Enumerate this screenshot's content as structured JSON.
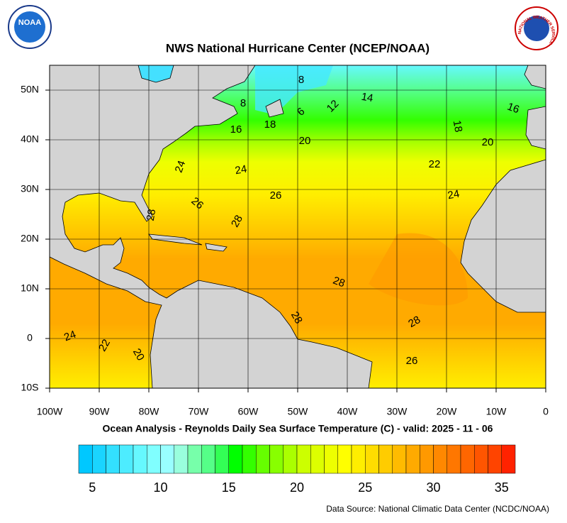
{
  "header": {
    "title": "NWS National Hurricane Center (NCEP/NOAA)",
    "logo_left": "NOAA",
    "logo_right": "NATIONAL WEATHER SERVICE"
  },
  "map": {
    "xlim": [
      -100,
      0
    ],
    "ylim": [
      -10,
      55
    ],
    "xticks": [
      {
        "value": -100,
        "label": "100W"
      },
      {
        "value": -90,
        "label": "90W"
      },
      {
        "value": -80,
        "label": "80W"
      },
      {
        "value": -70,
        "label": "70W"
      },
      {
        "value": -60,
        "label": "60W"
      },
      {
        "value": -50,
        "label": "50W"
      },
      {
        "value": -40,
        "label": "40W"
      },
      {
        "value": -30,
        "label": "30W"
      },
      {
        "value": -20,
        "label": "20W"
      },
      {
        "value": -10,
        "label": "10W"
      },
      0
    ],
    "yticks": [
      {
        "value": -10,
        "label": "10S"
      },
      0,
      {
        "value": 10,
        "label": "10N"
      },
      {
        "value": 20,
        "label": "20N"
      },
      {
        "value": 30,
        "label": "30N"
      },
      {
        "value": 40,
        "label": "40N"
      },
      {
        "value": 50,
        "label": "50N"
      }
    ],
    "contour_labels": [
      8,
      8,
      6,
      12,
      14,
      16,
      18,
      16,
      18,
      20,
      20,
      22,
      24,
      24,
      26,
      24,
      26,
      28,
      28,
      28,
      28,
      28,
      24,
      22,
      20,
      26
    ],
    "subtitle": "Ocean Analysis - Reynolds Daily Sea Surface Temperature (C) - valid: 2025 - 11 - 06"
  },
  "colorbar": {
    "lim": [
      4,
      36
    ],
    "ticks": [
      5,
      10,
      15,
      20,
      25,
      30,
      35
    ],
    "colors": [
      "#00c8ff",
      "#1ad4ff",
      "#33e0ff",
      "#4decff",
      "#66f8ff",
      "#80ffff",
      "#99ffff",
      "#99ffdd",
      "#77ffaa",
      "#55ff88",
      "#33ff55",
      "#00ff00",
      "#33ff00",
      "#66ff00",
      "#88ff00",
      "#aaff00",
      "#ccff00",
      "#ddff00",
      "#eeff00",
      "#ffff00",
      "#ffee00",
      "#ffdd00",
      "#ffcc00",
      "#ffbb00",
      "#ffaa00",
      "#ff9900",
      "#ff8800",
      "#ff7700",
      "#ff6600",
      "#ff5500",
      "#ff4400",
      "#ff2200"
    ]
  },
  "footer": {
    "source": "Data Source: National Climatic Data Center (NCDC/NOAA)"
  }
}
